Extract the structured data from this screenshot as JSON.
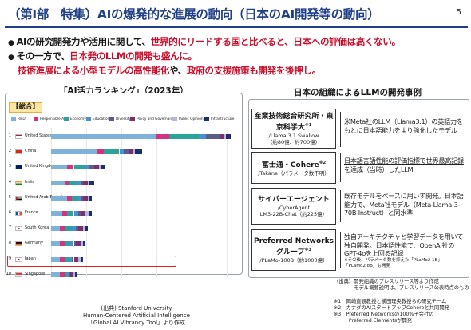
{
  "title": "（第Ⅰ部　特集）AIの爆発的な進展の動向（日本のAI開発等の動向）",
  "page_number": "5",
  "bullets": [
    {
      "pre": "AIの研究開発力や活用に関して、",
      "em": "世界的にリードする国と比べると、日本への評価は高くない。",
      "post": ""
    },
    {
      "pre": "その一方で、",
      "em": "日本発のLLMの開発も盛んに。",
      "post": ""
    },
    {
      "pre": "",
      "em": "技術進展による小型モデルの高性能化",
      "post": "や、",
      "em2": "政府の支援施策も開発を後押し。"
    }
  ],
  "left": {
    "heading": "「AI活力ランキング」（2023年）",
    "badge": "【総合】",
    "legend": [
      "R&D",
      "Responsible AI",
      "Economy",
      "Education",
      "Diversity",
      "Policy and Governance",
      "Public Opinion",
      "Infrastructure"
    ],
    "colors": [
      "#7fb2d9",
      "#d6317f",
      "#2aa39a",
      "#4a8fd0",
      "#5c5c8a",
      "#7c2f6c",
      "#b5b7d6",
      "#1c2f6a"
    ],
    "source": "(出典) Stanford University\nHuman-Centered Artificial Intelligence\n「Global AI Vibrancy Tool」より作成"
  },
  "chart_data": {
    "type": "bar",
    "stacked": true,
    "title": "",
    "series": [
      "R&D",
      "Responsible AI",
      "Economy",
      "Education",
      "Diversity",
      "Policy and Governance",
      "Public Opinion",
      "Infrastructure"
    ],
    "categories": [
      "United States",
      "China",
      "United Kingdom",
      "India",
      "United Arab Emirates",
      "France",
      "South Korea",
      "Germany",
      "Japan",
      "Singapore"
    ],
    "ranks": [
      "1",
      "2",
      "3",
      "4",
      "5",
      "6",
      "7",
      "8",
      "9",
      "10"
    ],
    "values": [
      [
        46,
        6,
        13,
        3,
        6,
        2,
        1,
        2
      ],
      [
        20,
        3,
        7,
        2,
        2,
        2,
        1,
        3
      ],
      [
        7,
        3,
        5,
        2,
        2,
        2,
        1,
        2
      ],
      [
        6,
        2,
        3,
        2,
        1,
        2,
        1,
        2
      ],
      [
        7,
        2,
        3,
        1,
        1,
        2,
        1,
        1
      ],
      [
        5,
        2,
        3,
        2,
        1,
        2,
        2,
        1
      ],
      [
        4,
        2,
        3,
        2,
        1,
        2,
        1,
        1
      ],
      [
        4,
        2,
        2,
        2,
        1,
        2,
        1,
        1
      ],
      [
        4,
        2,
        2,
        1,
        1,
        2,
        1,
        1
      ],
      [
        4,
        2,
        1,
        1,
        0.5,
        1,
        1,
        1
      ]
    ],
    "highlight": "Japan"
  },
  "right": {
    "heading": "日本の組織によるLLMの開発事例",
    "orgs": [
      {
        "name": "産業技術総合研究所・東京科学大",
        "sup": "※1",
        "model": "/Llama 3.1 Swallow",
        "params": "(約80億、約700億)",
        "desc": "米Meta社のLLM（Llama3.1）の英語力をもとに日本語能力をより強化したモデル"
      },
      {
        "name": "富士通・Cohere",
        "sup": "※2",
        "model": "/Takane（パラメータ数不明）",
        "params": "",
        "desc": "日本語言語性能の評価指標で世界最高記録を達成（当時）したLLM"
      },
      {
        "name": "サイバーエージェント",
        "sup": "",
        "model": "/CyberAgent",
        "params": "LM3-22B-Chat（約225億）",
        "desc": "既存モデルをベースに用いず開発。日本語能力で、Meta社モデル（Meta-Llama-3-70B-Instruct）と同水準"
      },
      {
        "name": "Preferred Networks グループ",
        "sup": "※3",
        "model": "/PLaMo-100B（約1000億）",
        "params": "",
        "desc": "独自アーキテクチャと学習データを用いて独自開発。日本語性能で、OpenAI社のGPT-4oを上回る記録",
        "small": "※その後、パラメータ数を抑えた「PLaMo2 1B」「PLaMo2 8B」も開発"
      }
    ],
    "notes": [
      "（出典）開発組織のプレスリリース等より作成",
      "　　　　モデル概要説明は、プレスリリース公表時点のもの",
      "※1　岡崎直観教授と横田理央教授らの研究チーム",
      "※2　カナダのAIスタートアップCohereと共同開発",
      "※3　Preferred Networksの100%子会社の",
      "　　　Preferred Elementsが開発"
    ]
  }
}
